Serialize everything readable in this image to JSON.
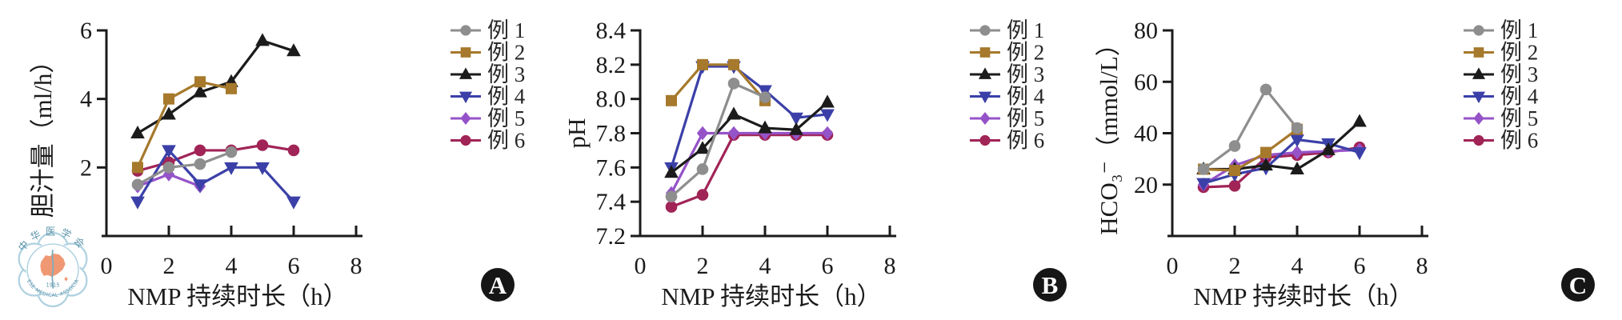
{
  "figure": {
    "background": "#ffffff",
    "x_axis_label": "NMP 持续时长（h）",
    "panel_badges": [
      "A",
      "B",
      "C"
    ]
  },
  "watermark": {
    "chinese_name": "中华医学会",
    "english_name": "CHINESE MEDICAL ASSOCIATION",
    "year": "1915",
    "colors": {
      "outline": "#a9cede",
      "map": "#ef9068",
      "text": "#4b89a2"
    }
  },
  "series_style": [
    {
      "label": "例 1",
      "color": "#8e8e8e",
      "marker": "circle"
    },
    {
      "label": "例 2",
      "color": "#a6792c",
      "marker": "square"
    },
    {
      "label": "例 3",
      "color": "#1b1b1b",
      "marker": "triangle-up"
    },
    {
      "label": "例 4",
      "color": "#3b40a8",
      "marker": "triangle-down"
    },
    {
      "label": "例 5",
      "color": "#9553c8",
      "marker": "diamond"
    },
    {
      "label": "例 6",
      "color": "#a12457",
      "marker": "circle"
    }
  ],
  "chart_data": [
    {
      "type": "line",
      "badge": "A",
      "ylabel": "胆汁量（ml/h）",
      "xlabel": "NMP 持续时长（h）",
      "xlim": [
        0,
        8
      ],
      "ylim": [
        0,
        6
      ],
      "xticks": [
        0,
        2,
        4,
        6,
        8
      ],
      "xtick_labels": [
        "0",
        "2",
        "4",
        "6",
        "8"
      ],
      "yticks": [
        2,
        4,
        6
      ],
      "ytick_labels": [
        "2",
        "4",
        "6"
      ],
      "legend_position": "right",
      "grid": false,
      "series": [
        {
          "name": "例 1",
          "x": [
            1,
            2,
            3,
            4
          ],
          "y": [
            1.5,
            2.0,
            2.1,
            2.45
          ]
        },
        {
          "name": "例 2",
          "x": [
            1,
            2,
            3,
            4
          ],
          "y": [
            2.0,
            4.0,
            4.5,
            4.3
          ]
        },
        {
          "name": "例 3",
          "x": [
            1,
            2,
            3,
            4,
            5,
            6
          ],
          "y": [
            3.0,
            3.55,
            4.2,
            4.5,
            5.7,
            5.4
          ]
        },
        {
          "name": "例 4",
          "x": [
            1,
            2,
            3,
            4,
            5,
            6
          ],
          "y": [
            1.0,
            2.5,
            1.5,
            2.0,
            2.0,
            1.0
          ]
        },
        {
          "name": "例 5",
          "x": [
            1,
            2,
            3
          ],
          "y": [
            1.45,
            1.8,
            1.45
          ]
        },
        {
          "name": "例 6",
          "x": [
            1,
            2,
            3,
            4,
            5,
            6
          ],
          "y": [
            1.9,
            2.15,
            2.5,
            2.5,
            2.65,
            2.5
          ]
        }
      ]
    },
    {
      "type": "line",
      "badge": "B",
      "ylabel": "pH",
      "xlabel": "NMP 持续时长（h）",
      "xlim": [
        0,
        8
      ],
      "ylim": [
        7.2,
        8.4
      ],
      "xticks": [
        0,
        2,
        4,
        6,
        8
      ],
      "xtick_labels": [
        "0",
        "2",
        "4",
        "6",
        "8"
      ],
      "yticks": [
        7.2,
        7.4,
        7.6,
        7.8,
        8.0,
        8.2,
        8.4
      ],
      "ytick_labels": [
        "7.2",
        "7.4",
        "7.6",
        "7.8",
        "8.0",
        "8.2",
        "8.4"
      ],
      "legend_position": "right",
      "grid": false,
      "series": [
        {
          "name": "例 1",
          "x": [
            1,
            2,
            3,
            4
          ],
          "y": [
            7.43,
            7.59,
            8.09,
            8.01
          ]
        },
        {
          "name": "例 2",
          "x": [
            1,
            2,
            3,
            4
          ],
          "y": [
            7.99,
            8.2,
            8.2,
            7.99
          ]
        },
        {
          "name": "例 3",
          "x": [
            1,
            2,
            3,
            4,
            5,
            6
          ],
          "y": [
            7.57,
            7.71,
            7.91,
            7.83,
            7.82,
            7.98
          ]
        },
        {
          "name": "例 4",
          "x": [
            1,
            2,
            3,
            4,
            5,
            6
          ],
          "y": [
            7.6,
            8.19,
            8.19,
            8.05,
            7.89,
            7.91
          ]
        },
        {
          "name": "例 5",
          "x": [
            1,
            2,
            3,
            4,
            5,
            6
          ],
          "y": [
            7.45,
            7.8,
            7.8,
            7.8,
            7.8,
            7.8
          ]
        },
        {
          "name": "例 6",
          "x": [
            1,
            2,
            3,
            4,
            5,
            6
          ],
          "y": [
            7.37,
            7.44,
            7.79,
            7.79,
            7.79,
            7.79
          ]
        }
      ]
    },
    {
      "type": "line",
      "badge": "C",
      "ylabel": "HCO₃⁻（mmol/L）",
      "xlabel": "NMP 持续时长（h）",
      "xlim": [
        0,
        8
      ],
      "ylim": [
        0,
        80
      ],
      "xticks": [
        0,
        2,
        4,
        6,
        8
      ],
      "xtick_labels": [
        "0",
        "2",
        "4",
        "6",
        "8"
      ],
      "yticks": [
        20,
        40,
        60,
        80
      ],
      "ytick_labels": [
        "20",
        "40",
        "60",
        "80"
      ],
      "legend_position": "right",
      "grid": false,
      "series": [
        {
          "name": "例 1",
          "x": [
            1,
            2,
            3,
            4
          ],
          "y": [
            26,
            35,
            57,
            42
          ]
        },
        {
          "name": "例 2",
          "x": [
            1,
            2,
            3,
            4
          ],
          "y": [
            26,
            25.5,
            32.5,
            41.5
          ]
        },
        {
          "name": "例 3",
          "x": [
            1,
            2,
            3,
            4,
            5,
            6
          ],
          "y": [
            26,
            26,
            27.5,
            26,
            33.5,
            44.5
          ]
        },
        {
          "name": "例 4",
          "x": [
            1,
            2,
            3,
            4,
            5,
            6
          ],
          "y": [
            20.5,
            24,
            26.5,
            37.5,
            36,
            32.5
          ]
        },
        {
          "name": "例 5",
          "x": [
            1,
            2,
            3,
            4,
            5,
            6
          ],
          "y": [
            20,
            27.5,
            31.5,
            32.5,
            33,
            33.5
          ]
        },
        {
          "name": "例 6",
          "x": [
            1,
            2,
            3,
            4,
            5,
            6
          ],
          "y": [
            19,
            19.5,
            30.5,
            31.5,
            32.5,
            34.5
          ]
        }
      ]
    }
  ]
}
